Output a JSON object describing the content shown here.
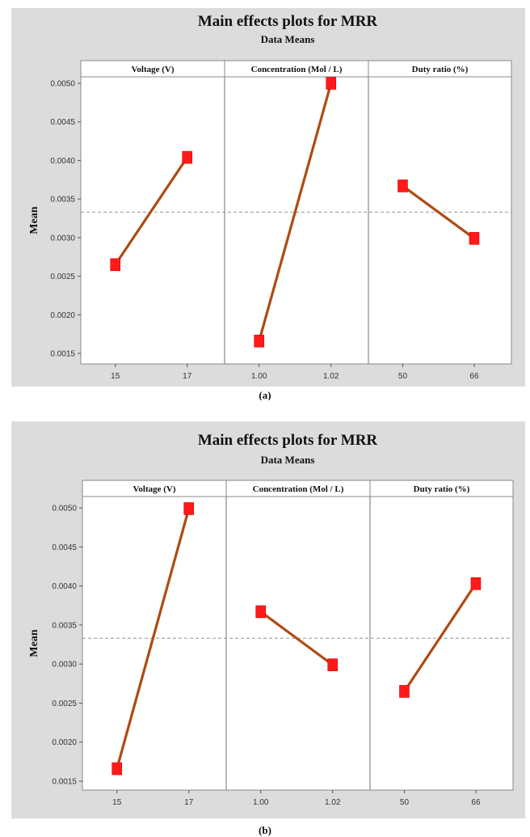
{
  "chart_data": [
    {
      "type": "line",
      "title": "Main effects plots for MRR",
      "subtitle": "Data Means",
      "ylabel": "Mean",
      "caption": "(a)",
      "ylim": [
        0.0015,
        0.0051
      ],
      "yticks": [
        "0.0015",
        "0.0020",
        "0.0025",
        "0.0030",
        "0.0035",
        "0.0040",
        "0.0045",
        "0.0050"
      ],
      "reference_mean": 0.00333,
      "grid": false,
      "colors": {
        "line": "#b04a12",
        "marker": "#ff1a1a",
        "reference": "#aaaaaa",
        "background": "#dcdcdc"
      },
      "panels": [
        {
          "name": "Voltage (V)",
          "categories": [
            "15",
            "17"
          ],
          "values": [
            0.00265,
            0.00404
          ]
        },
        {
          "name": "Concentration (Mol / L)",
          "categories": [
            "1.00",
            "1.02"
          ],
          "values": [
            0.00166,
            0.005
          ]
        },
        {
          "name": "Duty ratio (%)",
          "categories": [
            "50",
            "66"
          ],
          "values": [
            0.00367,
            0.00299
          ]
        }
      ]
    },
    {
      "type": "line",
      "title": "Main effects plots for MRR",
      "subtitle": "Data Means",
      "ylabel": "Mean",
      "caption": "(b)",
      "ylim": [
        0.0015,
        0.0051
      ],
      "yticks": [
        "0.0015",
        "0.0020",
        "0.0025",
        "0.0030",
        "0.0035",
        "0.0040",
        "0.0045",
        "0.0050"
      ],
      "reference_mean": 0.00333,
      "grid": false,
      "colors": {
        "line": "#b04a12",
        "marker": "#ff1a1a",
        "reference": "#aaaaaa",
        "background": "#dcdcdc"
      },
      "panels": [
        {
          "name": "Voltage (V)",
          "categories": [
            "15",
            "17"
          ],
          "values": [
            0.00166,
            0.00499
          ]
        },
        {
          "name": "Concentration (Mol / L)",
          "categories": [
            "1.00",
            "1.02"
          ],
          "values": [
            0.00367,
            0.00299
          ]
        },
        {
          "name": "Duty ratio (%)",
          "categories": [
            "50",
            "66"
          ],
          "values": [
            0.00265,
            0.00403
          ]
        }
      ]
    }
  ]
}
